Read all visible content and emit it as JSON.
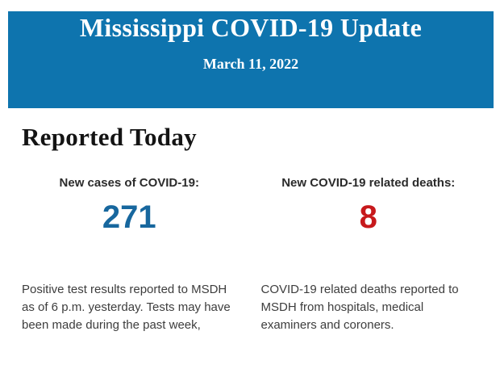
{
  "banner": {
    "title": "Mississippi COVID-19 Update",
    "date": "March 11, 2022",
    "bg_color": "#0e74ae",
    "text_color": "#ffffff"
  },
  "main": {
    "heading": "Reported Today",
    "heading_color": "#141414"
  },
  "stats": [
    {
      "label": "New cases of COVID-19:",
      "value": "271",
      "value_color": "#17679e",
      "description": "Positive test results reported to MSDH as of 6 p.m. yesterday. Tests may have been made during the past week,"
    },
    {
      "label": "New COVID-19 related deaths:",
      "value": "8",
      "value_color": "#c7191c",
      "description": "COVID-19 related deaths reported to MSDH from hospitals, medical examiners and coroners."
    }
  ]
}
